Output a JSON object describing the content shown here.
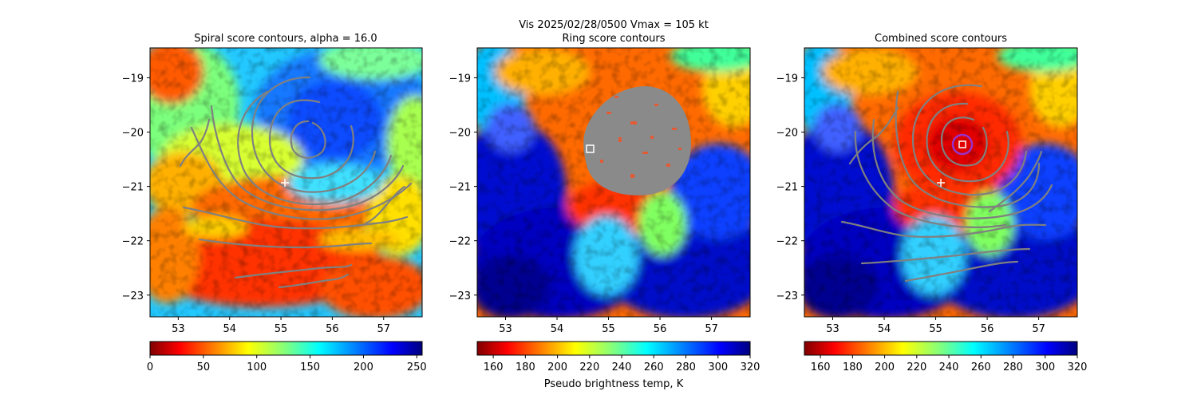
{
  "suptitle_line1": "Vis  2025/02/28/0500    Vmax = 105 kt",
  "chart_data": [
    {
      "type": "heatmap",
      "panel": "left",
      "title": "Spiral score contours, alpha = 16.0",
      "colormap": "jet_r",
      "xlim": [
        52.45,
        57.75
      ],
      "ylim": [
        -23.4,
        -18.45
      ],
      "xticks": [
        53,
        54,
        55,
        56,
        57
      ],
      "yticks": [
        -19,
        -20,
        -21,
        -22,
        -23
      ],
      "xtick_labels": [
        "53",
        "54",
        "55",
        "56",
        "57"
      ],
      "ytick_labels": [
        "−19",
        "−20",
        "−21",
        "−22",
        "−23"
      ],
      "colorbar": {
        "min": 0,
        "max": 255,
        "ticks": [
          0,
          50,
          100,
          150,
          200,
          250
        ],
        "tick_labels": [
          "0",
          "50",
          "100",
          "150",
          "200",
          "250"
        ],
        "label": ""
      },
      "markers": [
        {
          "kind": "plus",
          "x": 55.1,
          "y": -20.95,
          "color": "#ffffff"
        }
      ],
      "contour_center": [
        55.6,
        -20.15
      ]
    },
    {
      "type": "heatmap",
      "panel": "center",
      "title": "Ring score contours",
      "colormap": "jet_r",
      "xlim": [
        52.45,
        57.75
      ],
      "ylim": [
        -23.4,
        -18.45
      ],
      "xticks": [
        53,
        54,
        55,
        56,
        57
      ],
      "yticks": [
        -19,
        -20,
        -21,
        -22,
        -23
      ],
      "xtick_labels": [
        "53",
        "54",
        "55",
        "56",
        "57"
      ],
      "ytick_labels": [
        "−19",
        "−20",
        "−21",
        "−22",
        "−23"
      ],
      "colorbar": {
        "min": 150,
        "max": 320,
        "ticks": [
          160,
          180,
          200,
          220,
          240,
          260,
          280,
          300,
          320
        ],
        "tick_labels": [
          "160",
          "180",
          "200",
          "220",
          "240",
          "260",
          "280",
          "300",
          "320"
        ],
        "label": "Pseudo brightness temp, K"
      },
      "markers": [
        {
          "kind": "square",
          "x": 54.65,
          "y": -20.3,
          "color": "#ffffff"
        }
      ],
      "ring_region_center": [
        55.45,
        -20.15
      ]
    },
    {
      "type": "heatmap",
      "panel": "right",
      "title": "Combined score contours",
      "colormap": "jet_r",
      "xlim": [
        52.45,
        57.75
      ],
      "ylim": [
        -23.4,
        -18.45
      ],
      "xticks": [
        53,
        54,
        55,
        56,
        57
      ],
      "yticks": [
        -19,
        -20,
        -21,
        -22,
        -23
      ],
      "xtick_labels": [
        "53",
        "54",
        "55",
        "56",
        "57"
      ],
      "ytick_labels": [
        "−19",
        "−20",
        "−21",
        "−22",
        "−23"
      ],
      "colorbar": {
        "min": 150,
        "max": 320,
        "ticks": [
          160,
          180,
          200,
          220,
          240,
          260,
          280,
          300,
          320
        ],
        "tick_labels": [
          "160",
          "180",
          "200",
          "220",
          "240",
          "260",
          "280",
          "300",
          "320"
        ],
        "label": ""
      },
      "markers": [
        {
          "kind": "plus",
          "x": 55.1,
          "y": -20.9,
          "color": "#ffffff"
        },
        {
          "kind": "square",
          "x": 55.5,
          "y": -20.22,
          "color": "#ffffff"
        },
        {
          "kind": "circle",
          "x": 55.5,
          "y": -20.22,
          "color": "#9932cc"
        }
      ],
      "contour_center": [
        55.5,
        -20.22
      ]
    }
  ]
}
